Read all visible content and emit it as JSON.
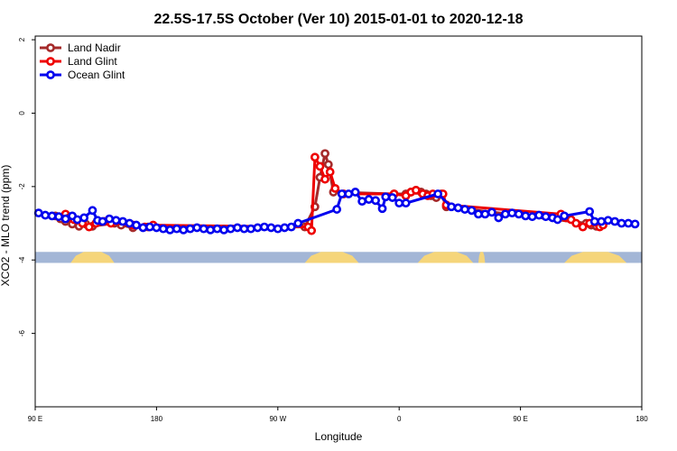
{
  "chart_data": {
    "type": "line",
    "title": "22.5S-17.5S October (Ver 10)   2015-01-01 to 2020-12-18",
    "xlabel": "Longitude",
    "ylabel": "XCO2 - MLO trend (ppm)",
    "xlim": [
      90,
      450
    ],
    "ylim": [
      -8,
      2.1
    ],
    "x_ticks": [
      {
        "value": 90,
        "label": "90 E"
      },
      {
        "value": 162,
        "label": "180"
      },
      {
        "value": 234,
        "label": "90 W"
      },
      {
        "value": 306,
        "label": "0"
      },
      {
        "value": 378,
        "label": "90 E"
      },
      {
        "value": 450,
        "label": "180"
      }
    ],
    "y_ticks": [
      {
        "value": 2,
        "label": "2"
      },
      {
        "value": 0,
        "label": "0"
      },
      {
        "value": -2,
        "label": "-2"
      },
      {
        "value": -4,
        "label": "-4"
      },
      {
        "value": -6,
        "label": "-6"
      }
    ],
    "legend_position": "top-left",
    "grid": false,
    "surface_band": {
      "y_top": -3.78,
      "y_bottom": -4.08,
      "ocean_color": "#a3b6d6",
      "land_color": "#f5d57a",
      "land_segments": [
        [
          111,
          137
        ],
        [
          250,
          282
        ],
        [
          317,
          350
        ],
        [
          353,
          357
        ],
        [
          404,
          441
        ]
      ]
    },
    "series": [
      {
        "name": "Land Nadir",
        "color": "#a52a2a",
        "points": [
          [
            102,
            -2.8
          ],
          [
            105,
            -2.88
          ],
          [
            108,
            -2.95
          ],
          [
            112,
            -3.02
          ],
          [
            116,
            -3.08
          ],
          [
            120,
            -3.02
          ],
          [
            124,
            -3.08
          ],
          [
            137,
            -3.0
          ],
          [
            141,
            -3.05
          ],
          [
            148,
            -3.12
          ],
          [
            157,
            -3.1
          ],
          [
            250,
            -3.1
          ],
          [
            256,
            -2.55
          ],
          [
            259,
            -1.75
          ],
          [
            262,
            -1.1
          ],
          [
            264,
            -1.4
          ],
          [
            267,
            -2.15
          ],
          [
            303,
            -2.2
          ],
          [
            310,
            -2.2
          ],
          [
            313,
            -2.15
          ],
          [
            316,
            -2.1
          ],
          [
            319,
            -2.15
          ],
          [
            322,
            -2.2
          ],
          [
            325,
            -2.25
          ],
          [
            328,
            -2.3
          ],
          [
            331,
            -2.2
          ],
          [
            334,
            -2.55
          ],
          [
            417,
            -3.0
          ],
          [
            420,
            -3.05
          ],
          [
            423,
            -3.08
          ]
        ]
      },
      {
        "name": "Land Glint",
        "color": "#ee0000",
        "points": [
          [
            108,
            -2.75
          ],
          [
            110,
            -2.85
          ],
          [
            113,
            -2.9
          ],
          [
            118,
            -3.0
          ],
          [
            122,
            -3.1
          ],
          [
            126,
            -3.0
          ],
          [
            131,
            -2.95
          ],
          [
            135,
            -3.0
          ],
          [
            148,
            -3.05
          ],
          [
            155,
            -3.1
          ],
          [
            160,
            -3.05
          ],
          [
            252,
            -3.1
          ],
          [
            254,
            -3.2
          ],
          [
            256,
            -1.2
          ],
          [
            259,
            -1.45
          ],
          [
            262,
            -1.8
          ],
          [
            265,
            -1.6
          ],
          [
            268,
            -2.05
          ],
          [
            273,
            -2.2
          ],
          [
            303,
            -2.2
          ],
          [
            310,
            -2.25
          ],
          [
            313,
            -2.15
          ],
          [
            316,
            -2.1
          ],
          [
            320,
            -2.2
          ],
          [
            323,
            -2.25
          ],
          [
            326,
            -2.2
          ],
          [
            332,
            -2.2
          ],
          [
            334,
            -2.5
          ],
          [
            402,
            -2.75
          ],
          [
            405,
            -2.85
          ],
          [
            408,
            -2.9
          ],
          [
            411,
            -3.0
          ],
          [
            415,
            -3.1
          ],
          [
            419,
            -3.0
          ],
          [
            425,
            -3.1
          ],
          [
            427,
            -3.05
          ]
        ]
      },
      {
        "name": "Ocean Glint",
        "color": "#0000ee",
        "points": [
          [
            92,
            -2.72
          ],
          [
            96,
            -2.78
          ],
          [
            100,
            -2.8
          ],
          [
            104,
            -2.82
          ],
          [
            108,
            -2.88
          ],
          [
            112,
            -2.8
          ],
          [
            115,
            -2.9
          ],
          [
            119,
            -2.85
          ],
          [
            124,
            -2.65
          ],
          [
            127,
            -2.92
          ],
          [
            130,
            -2.95
          ],
          [
            134,
            -2.88
          ],
          [
            138,
            -2.92
          ],
          [
            142,
            -2.95
          ],
          [
            146,
            -3.0
          ],
          [
            150,
            -3.05
          ],
          [
            154,
            -3.12
          ],
          [
            158,
            -3.1
          ],
          [
            162,
            -3.12
          ],
          [
            166,
            -3.15
          ],
          [
            170,
            -3.18
          ],
          [
            174,
            -3.15
          ],
          [
            178,
            -3.18
          ],
          [
            182,
            -3.15
          ],
          [
            186,
            -3.12
          ],
          [
            190,
            -3.15
          ],
          [
            194,
            -3.18
          ],
          [
            198,
            -3.15
          ],
          [
            202,
            -3.18
          ],
          [
            206,
            -3.15
          ],
          [
            210,
            -3.12
          ],
          [
            214,
            -3.15
          ],
          [
            218,
            -3.15
          ],
          [
            222,
            -3.12
          ],
          [
            226,
            -3.1
          ],
          [
            230,
            -3.12
          ],
          [
            234,
            -3.15
          ],
          [
            238,
            -3.12
          ],
          [
            242,
            -3.1
          ],
          [
            246,
            -3.0
          ],
          [
            269,
            -2.62
          ],
          [
            272,
            -2.2
          ],
          [
            276,
            -2.2
          ],
          [
            280,
            -2.15
          ],
          [
            284,
            -2.4
          ],
          [
            288,
            -2.35
          ],
          [
            292,
            -2.38
          ],
          [
            296,
            -2.6
          ],
          [
            298,
            -2.28
          ],
          [
            302,
            -2.3
          ],
          [
            306,
            -2.45
          ],
          [
            310,
            -2.45
          ],
          [
            329,
            -2.2
          ],
          [
            337,
            -2.55
          ],
          [
            341,
            -2.58
          ],
          [
            345,
            -2.62
          ],
          [
            349,
            -2.65
          ],
          [
            353,
            -2.75
          ],
          [
            357,
            -2.75
          ],
          [
            361,
            -2.7
          ],
          [
            365,
            -2.85
          ],
          [
            369,
            -2.75
          ],
          [
            373,
            -2.72
          ],
          [
            377,
            -2.75
          ],
          [
            381,
            -2.8
          ],
          [
            385,
            -2.82
          ],
          [
            389,
            -2.78
          ],
          [
            393,
            -2.82
          ],
          [
            397,
            -2.85
          ],
          [
            400,
            -2.9
          ],
          [
            404,
            -2.8
          ],
          [
            419,
            -2.68
          ],
          [
            422,
            -2.95
          ],
          [
            426,
            -2.95
          ],
          [
            430,
            -2.92
          ],
          [
            434,
            -2.95
          ],
          [
            438,
            -3.0
          ],
          [
            442,
            -3.0
          ],
          [
            446,
            -3.02
          ]
        ]
      }
    ]
  }
}
